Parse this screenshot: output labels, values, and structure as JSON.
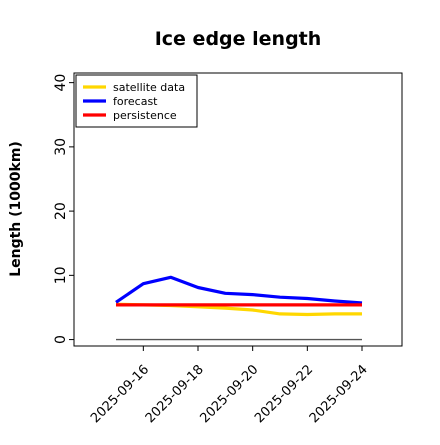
{
  "chart_data": {
    "type": "line",
    "title": "Ice edge length",
    "xlabel": "",
    "ylabel": "Length (1000km)",
    "x": [
      "2025-09-15",
      "2025-09-16",
      "2025-09-17",
      "2025-09-18",
      "2025-09-19",
      "2025-09-20",
      "2025-09-21",
      "2025-09-22",
      "2025-09-23",
      "2025-09-24"
    ],
    "xticks": [
      "2025-09-16",
      "2025-09-18",
      "2025-09-20",
      "2025-09-22",
      "2025-09-24"
    ],
    "highlight_tick": "2025-09-16",
    "ylim": [
      -1,
      41.5
    ],
    "yticks": [
      0,
      10,
      20,
      30,
      40
    ],
    "grid": false,
    "legend_position": "top-left",
    "baseline": 0,
    "series": [
      {
        "name": "satellite data",
        "color": "#FFD700",
        "values": [
          5.5,
          5.4,
          5.3,
          5.1,
          4.9,
          4.6,
          4.0,
          3.9,
          4.0,
          4.0
        ]
      },
      {
        "name": "forecast",
        "color": "#0000FF",
        "values": [
          5.8,
          8.7,
          9.7,
          8.1,
          7.2,
          7.0,
          6.6,
          6.4,
          6.0,
          5.7
        ]
      },
      {
        "name": "persistence",
        "color": "#FF0000",
        "values": [
          5.4,
          5.4,
          5.4,
          5.4,
          5.4,
          5.4,
          5.4,
          5.4,
          5.4,
          5.4
        ]
      }
    ]
  },
  "colors": {
    "highlight_tick": "#228B22",
    "baseline": "#555555"
  }
}
